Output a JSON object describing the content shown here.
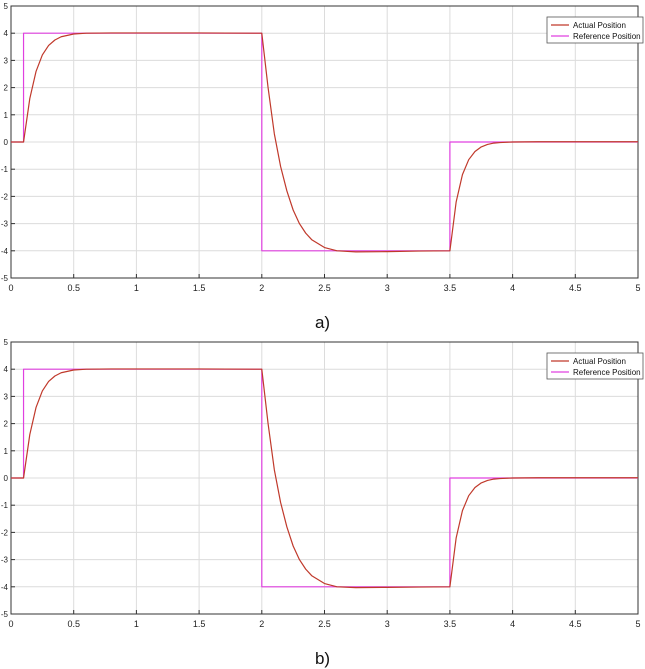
{
  "captions": [
    "a)",
    "b)"
  ],
  "chart_data": [
    {
      "type": "line",
      "caption": "a)",
      "xlim": [
        0,
        5
      ],
      "ylim": [
        -5,
        5
      ],
      "xticks": [
        0,
        0.5,
        1,
        1.5,
        2,
        2.5,
        3,
        3.5,
        4,
        4.5,
        5
      ],
      "yticks": [
        5,
        4,
        3,
        2,
        1,
        0,
        -1,
        -2,
        -3,
        -4,
        -5
      ],
      "grid": true,
      "legend_position": "top-right",
      "series": [
        {
          "name": "Actual Position",
          "color": "#c0392b",
          "x": [
            0,
            0.1,
            0.15,
            0.2,
            0.25,
            0.3,
            0.35,
            0.4,
            0.5,
            0.6,
            0.8,
            1.0,
            1.5,
            2.0,
            2.05,
            2.1,
            2.15,
            2.2,
            2.25,
            2.3,
            2.35,
            2.4,
            2.5,
            2.6,
            2.75,
            3.0,
            3.25,
            3.5,
            3.55,
            3.6,
            3.65,
            3.7,
            3.75,
            3.8,
            3.85,
            3.9,
            4.0,
            4.2,
            4.5,
            5.0
          ],
          "y": [
            0,
            0,
            1.6,
            2.6,
            3.2,
            3.55,
            3.75,
            3.87,
            3.97,
            4.0,
            4.01,
            4.01,
            4.01,
            4.0,
            2.0,
            0.3,
            -0.9,
            -1.8,
            -2.5,
            -3.0,
            -3.35,
            -3.6,
            -3.88,
            -4.0,
            -4.04,
            -4.03,
            -4.01,
            -4.0,
            -2.2,
            -1.2,
            -0.65,
            -0.35,
            -0.18,
            -0.09,
            -0.04,
            -0.02,
            0.0,
            0.01,
            0.01,
            0.01
          ]
        },
        {
          "name": "Reference Position",
          "color": "#e040e0",
          "x": [
            0,
            0.1,
            0.1,
            2.0,
            2.0,
            3.5,
            3.5,
            5.0
          ],
          "y": [
            0,
            0,
            4,
            4,
            -4,
            -4,
            0,
            0
          ]
        }
      ]
    },
    {
      "type": "line",
      "caption": "b)",
      "xlim": [
        0,
        5
      ],
      "ylim": [
        -5,
        5
      ],
      "xticks": [
        0,
        0.5,
        1,
        1.5,
        2,
        2.5,
        3,
        3.5,
        4,
        4.5,
        5
      ],
      "yticks": [
        5,
        4,
        3,
        2,
        1,
        0,
        -1,
        -2,
        -3,
        -4,
        -5
      ],
      "grid": true,
      "legend_position": "top-right",
      "series": [
        {
          "name": "Actual Position",
          "color": "#c0392b",
          "x": [
            0,
            0.1,
            0.15,
            0.2,
            0.25,
            0.3,
            0.35,
            0.4,
            0.5,
            0.6,
            0.8,
            1.0,
            1.5,
            2.0,
            2.05,
            2.1,
            2.15,
            2.2,
            2.25,
            2.3,
            2.35,
            2.4,
            2.5,
            2.6,
            2.75,
            3.0,
            3.25,
            3.5,
            3.55,
            3.6,
            3.65,
            3.7,
            3.75,
            3.8,
            3.85,
            3.9,
            4.0,
            4.2,
            4.5,
            5.0
          ],
          "y": [
            0,
            0,
            1.6,
            2.6,
            3.2,
            3.55,
            3.75,
            3.87,
            3.97,
            4.0,
            4.01,
            4.01,
            4.01,
            4.0,
            2.0,
            0.3,
            -0.9,
            -1.8,
            -2.5,
            -3.0,
            -3.35,
            -3.6,
            -3.88,
            -4.0,
            -4.03,
            -4.02,
            -4.01,
            -4.0,
            -2.2,
            -1.2,
            -0.65,
            -0.35,
            -0.18,
            -0.09,
            -0.04,
            -0.02,
            0.0,
            0.01,
            0.01,
            0.01
          ]
        },
        {
          "name": "Reference Position",
          "color": "#e040e0",
          "x": [
            0,
            0.1,
            0.1,
            2.0,
            2.0,
            3.5,
            3.5,
            5.0
          ],
          "y": [
            0,
            0,
            4,
            4,
            -4,
            -4,
            0,
            0
          ]
        }
      ]
    }
  ]
}
